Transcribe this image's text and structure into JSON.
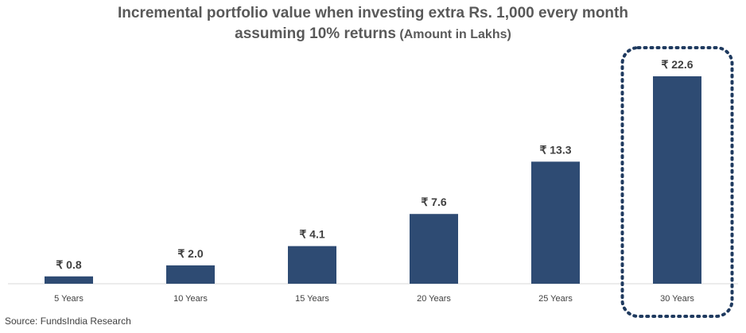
{
  "chart_data": {
    "type": "bar",
    "title_line1": "Incremental portfolio value when investing extra Rs. 1,000 every month",
    "title_line2": "assuming 10% returns",
    "title_unit": "(Amount in Lakhs)",
    "categories": [
      "5 Years",
      "10 Years",
      "15 Years",
      "20 Years",
      "25 Years",
      "30 Years"
    ],
    "values": [
      0.8,
      2.0,
      4.1,
      7.6,
      13.3,
      22.6
    ],
    "value_labels": [
      "₹ 0.8",
      "₹ 2.0",
      "₹ 4.1",
      "₹ 7.6",
      "₹ 13.3",
      "₹ 22.6"
    ],
    "highlighted_category": "30 Years",
    "ylim": [
      0,
      22.6
    ],
    "grid": false,
    "bar_color": "#2E4B73",
    "highlight_color": "#1F3A5F"
  },
  "source": "Source: FundsIndia Research"
}
